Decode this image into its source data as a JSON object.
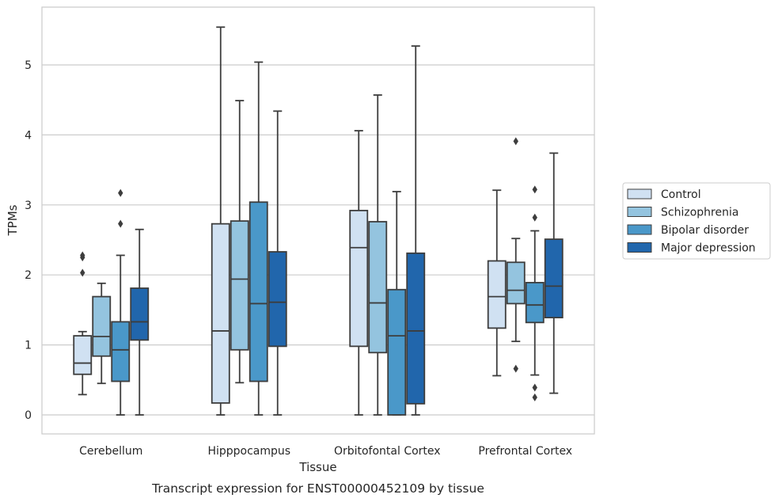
{
  "chart_data": {
    "type": "boxplot",
    "caption": "Transcript expression for ENST00000452109 by tissue",
    "xlabel": "Tissue",
    "ylabel": "TPMs",
    "ylim": [
      -0.27,
      5.83
    ],
    "yticks": [
      0,
      1,
      2,
      3,
      4,
      5
    ],
    "grid": "horizontal",
    "legend_position": "right",
    "categories": [
      "Cerebellum",
      "Hipppocampus",
      "Orbitofontal Cortex",
      "Prefrontal Cortex"
    ],
    "series": [
      {
        "name": "Control",
        "color": "#d0e1f2",
        "boxes": [
          {
            "whislo": 0.29,
            "q1": 0.58,
            "med": 0.74,
            "q3": 1.13,
            "whishi": 1.19,
            "fliers": [
              2.03,
              2.25,
              2.28
            ]
          },
          {
            "whislo": 0.0,
            "q1": 0.17,
            "med": 1.2,
            "q3": 2.73,
            "whishi": 5.54,
            "fliers": []
          },
          {
            "whislo": 0.0,
            "q1": 0.98,
            "med": 2.39,
            "q3": 2.92,
            "whishi": 4.06,
            "fliers": []
          },
          {
            "whislo": 0.56,
            "q1": 1.24,
            "med": 1.69,
            "q3": 2.2,
            "whishi": 3.21,
            "fliers": []
          }
        ]
      },
      {
        "name": "Schizophrenia",
        "color": "#94c4df",
        "boxes": [
          {
            "whislo": 0.45,
            "q1": 0.84,
            "med": 1.12,
            "q3": 1.69,
            "whishi": 1.88,
            "fliers": []
          },
          {
            "whislo": 0.46,
            "q1": 0.93,
            "med": 1.94,
            "q3": 2.77,
            "whishi": 4.49,
            "fliers": []
          },
          {
            "whislo": 0.0,
            "q1": 0.89,
            "med": 1.6,
            "q3": 2.76,
            "whishi": 4.57,
            "fliers": []
          },
          {
            "whislo": 1.05,
            "q1": 1.59,
            "med": 1.78,
            "q3": 2.18,
            "whishi": 2.52,
            "fliers": [
              0.66,
              3.91
            ]
          }
        ]
      },
      {
        "name": "Bipolar disorder",
        "color": "#4a98c9",
        "boxes": [
          {
            "whislo": 0.0,
            "q1": 0.48,
            "med": 0.93,
            "q3": 1.33,
            "whishi": 2.28,
            "fliers": [
              2.73,
              3.17
            ]
          },
          {
            "whislo": 0.0,
            "q1": 0.48,
            "med": 1.59,
            "q3": 3.04,
            "whishi": 5.04,
            "fliers": []
          },
          {
            "whislo": 0.0,
            "q1": 0.0,
            "med": 1.13,
            "q3": 1.79,
            "whishi": 3.19,
            "fliers": []
          },
          {
            "whislo": 0.57,
            "q1": 1.32,
            "med": 1.57,
            "q3": 1.89,
            "whishi": 2.63,
            "fliers": [
              0.25,
              0.39,
              2.82,
              3.22
            ]
          }
        ]
      },
      {
        "name": "Major depression",
        "color": "#2166ac",
        "boxes": [
          {
            "whislo": 0.0,
            "q1": 1.07,
            "med": 1.33,
            "q3": 1.81,
            "whishi": 2.65,
            "fliers": []
          },
          {
            "whislo": 0.0,
            "q1": 0.98,
            "med": 1.61,
            "q3": 2.33,
            "whishi": 4.34,
            "fliers": []
          },
          {
            "whislo": 0.0,
            "q1": 0.16,
            "med": 1.2,
            "q3": 2.31,
            "whishi": 5.27,
            "fliers": []
          },
          {
            "whislo": 0.31,
            "q1": 1.39,
            "med": 1.84,
            "q3": 2.51,
            "whishi": 3.74,
            "fliers": []
          }
        ]
      }
    ]
  }
}
